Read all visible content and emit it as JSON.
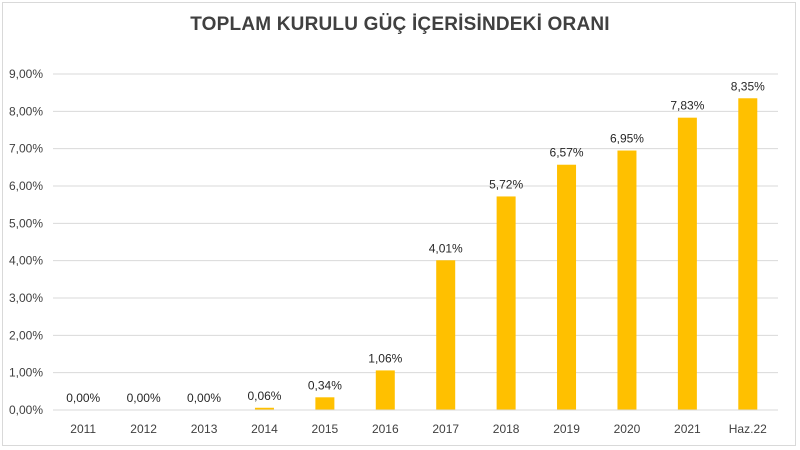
{
  "chart_data": {
    "type": "bar",
    "title": "TOPLAM KURULU GÜÇ İÇERİSİNDEKİ ORANI",
    "xlabel": "",
    "ylabel": "",
    "categories": [
      "2011",
      "2012",
      "2013",
      "2014",
      "2015",
      "2016",
      "2017",
      "2018",
      "2019",
      "2020",
      "2021",
      "Haz.22"
    ],
    "values": [
      0.0,
      0.0,
      0.0,
      0.06,
      0.34,
      1.06,
      4.01,
      5.72,
      6.57,
      6.95,
      7.83,
      8.35
    ],
    "data_labels": [
      "0,00%",
      "0,00%",
      "0,00%",
      "0,06%",
      "0,34%",
      "1,06%",
      "4,01%",
      "5,72%",
      "6,57%",
      "6,95%",
      "7,83%",
      "8,35%"
    ],
    "ylim": [
      0,
      9
    ],
    "yticks": [
      0,
      1,
      2,
      3,
      4,
      5,
      6,
      7,
      8,
      9
    ],
    "ytick_labels": [
      "0,00%",
      "1,00%",
      "2,00%",
      "3,00%",
      "4,00%",
      "5,00%",
      "6,00%",
      "7,00%",
      "8,00%",
      "9,00%"
    ],
    "grid": true,
    "legend": "none",
    "bar_color": "#FFC000",
    "grid_color": "#D9D9D9",
    "text_color": "#404040"
  }
}
